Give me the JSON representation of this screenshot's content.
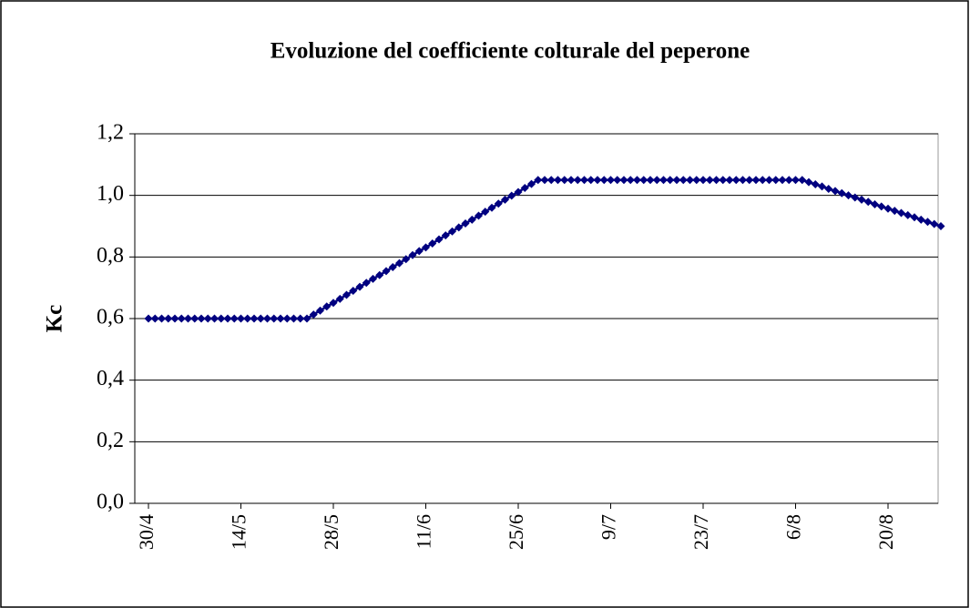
{
  "chart_data": {
    "type": "line",
    "title": "Evoluzione del coefficiente colturale del peperone",
    "y_label": "Kc",
    "categories": [
      "30/4",
      null,
      null,
      null,
      null,
      null,
      null,
      null,
      null,
      null,
      null,
      null,
      null,
      null,
      "14/5",
      null,
      null,
      null,
      null,
      null,
      null,
      null,
      null,
      null,
      null,
      null,
      null,
      null,
      "28/5",
      null,
      null,
      null,
      null,
      null,
      null,
      null,
      null,
      null,
      null,
      null,
      null,
      null,
      "11/6",
      null,
      null,
      null,
      null,
      null,
      null,
      null,
      null,
      null,
      null,
      null,
      null,
      null,
      "25/6",
      null,
      null,
      null,
      null,
      null,
      null,
      null,
      null,
      null,
      null,
      null,
      null,
      null,
      "9/7",
      null,
      null,
      null,
      null,
      null,
      null,
      null,
      null,
      null,
      null,
      null,
      null,
      null,
      "23/7",
      null,
      null,
      null,
      null,
      null,
      null,
      null,
      null,
      null,
      null,
      null,
      null,
      null,
      "6/8",
      null,
      null,
      null,
      null,
      null,
      null,
      null,
      null,
      null,
      null,
      null,
      null,
      null,
      "20/8",
      null,
      null,
      null,
      null,
      null,
      null,
      null,
      null
    ],
    "series": [
      {
        "name": "Kc",
        "color": "#000080",
        "values": [
          0.6,
          0.6,
          0.6,
          0.6,
          0.6,
          0.6,
          0.6,
          0.6,
          0.6,
          0.6,
          0.6,
          0.6,
          0.6,
          0.6,
          0.6,
          0.6,
          0.6,
          0.6,
          0.6,
          0.6,
          0.6,
          0.6,
          0.6,
          0.6,
          0.6,
          0.613,
          0.626,
          0.639,
          0.651,
          0.664,
          0.677,
          0.69,
          0.703,
          0.716,
          0.729,
          0.741,
          0.754,
          0.767,
          0.78,
          0.793,
          0.806,
          0.819,
          0.831,
          0.844,
          0.857,
          0.87,
          0.883,
          0.896,
          0.909,
          0.921,
          0.934,
          0.947,
          0.96,
          0.973,
          0.986,
          0.999,
          1.011,
          1.024,
          1.037,
          1.05,
          1.05,
          1.05,
          1.05,
          1.05,
          1.05,
          1.05,
          1.05,
          1.05,
          1.05,
          1.05,
          1.05,
          1.05,
          1.05,
          1.05,
          1.05,
          1.05,
          1.05,
          1.05,
          1.05,
          1.05,
          1.05,
          1.05,
          1.05,
          1.05,
          1.05,
          1.05,
          1.05,
          1.05,
          1.05,
          1.05,
          1.05,
          1.05,
          1.05,
          1.05,
          1.05,
          1.05,
          1.05,
          1.05,
          1.05,
          1.05,
          1.043,
          1.036,
          1.029,
          1.021,
          1.014,
          1.007,
          1.0,
          0.993,
          0.986,
          0.979,
          0.971,
          0.964,
          0.957,
          0.95,
          0.943,
          0.936,
          0.929,
          0.921,
          0.914,
          0.907,
          0.9
        ]
      }
    ],
    "ylim": [
      0,
      1.2
    ],
    "yticks": [
      {
        "value": 0,
        "label": "0,0"
      },
      {
        "value": 0.2,
        "label": "0,2"
      },
      {
        "value": 0.4,
        "label": "0,4"
      },
      {
        "value": 0.6,
        "label": "0,6"
      },
      {
        "value": 0.8,
        "label": "0,8"
      },
      {
        "value": 1.0,
        "label": "1,0"
      },
      {
        "value": 1.2,
        "label": "1,2"
      }
    ],
    "grid": true
  }
}
